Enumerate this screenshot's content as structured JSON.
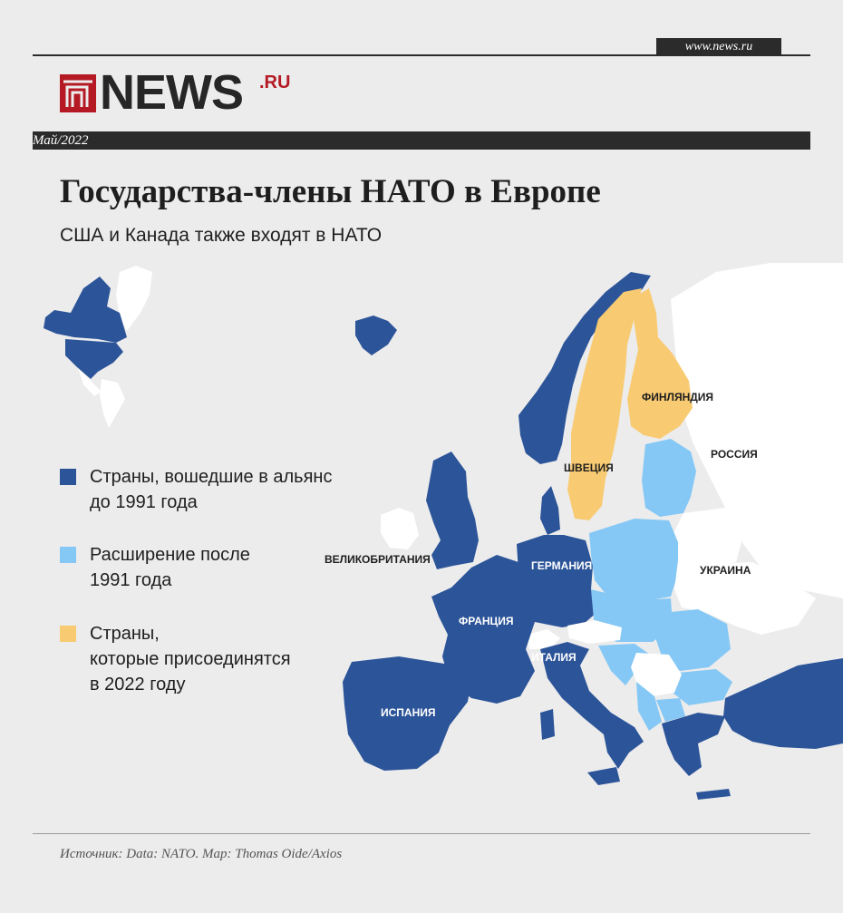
{
  "header": {
    "url": "www.news.ru",
    "logo_text": "NEWS",
    "logo_suffix": ".RU",
    "date": "Май/2022"
  },
  "title": "Государства-члены НАТО в Европе",
  "subtitle": "США и Канада также входят в НАТО",
  "legend": [
    {
      "label": "Страны, вошедшие в альянс\nдо 1991 года",
      "color": "#2c5499"
    },
    {
      "label": "Расширение после\n1991 года",
      "color": "#85c8f5"
    },
    {
      "label": "Страны,\nкоторые присоединятся\nв 2022 году",
      "color": "#f8cb72"
    }
  ],
  "map_labels": {
    "finland": "ФИНЛЯНДИЯ",
    "russia": "РОССИЯ",
    "sweden": "ШВЕЦИЯ",
    "uk": "ВЕЛИКОБРИТАНИЯ",
    "germany": "ГЕРМАНИЯ",
    "ukraine": "УКРАИНА",
    "france": "ФРАНЦИЯ",
    "italy": "ИТАЛИЯ",
    "spain": "ИСПАНИЯ"
  },
  "colors": {
    "pre1991": "#2c5499",
    "post1991": "#85c8f5",
    "joining2022": "#f8cb72",
    "nonmember": "#ffffff",
    "background": "#ececec",
    "logo_red": "#b51a24"
  },
  "source": "Источник: Data: NATO. Map: Thomas Oide/Axios"
}
